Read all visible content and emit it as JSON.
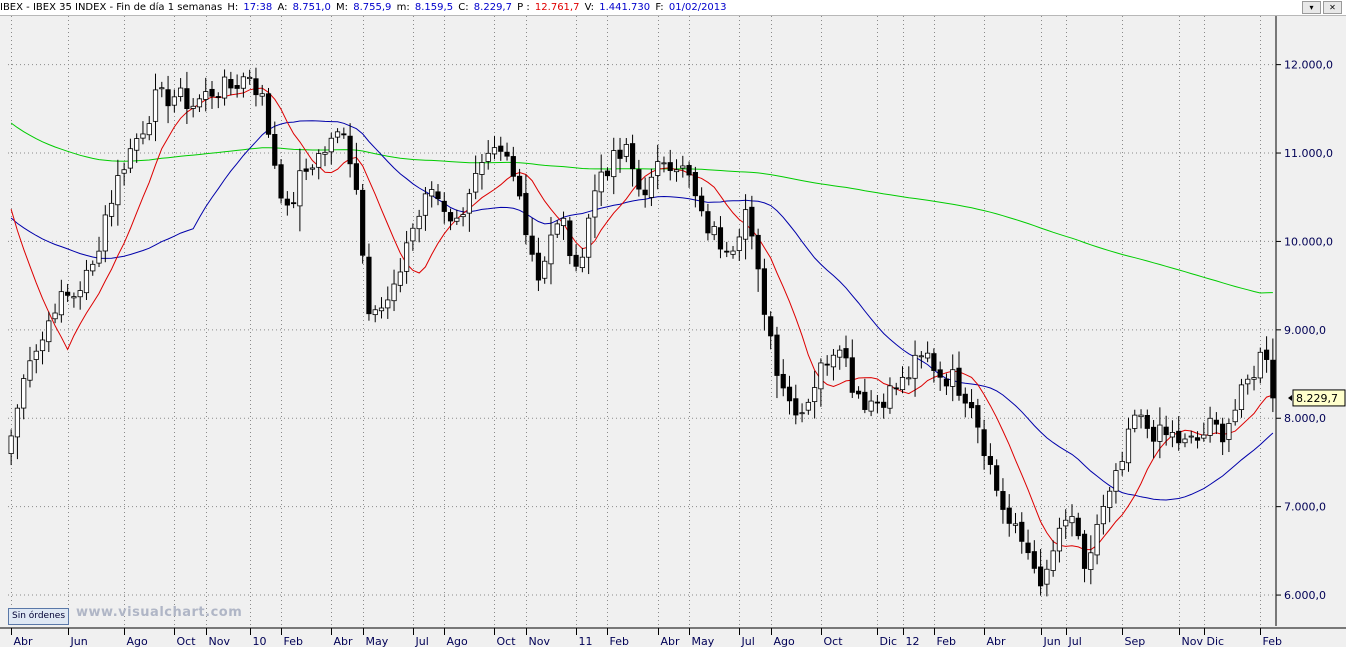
{
  "header": {
    "symbol": "IBEX - IBEX 35 INDEX - Fin de día 1 semanas",
    "fields": [
      {
        "label": "H:",
        "value": "17:38",
        "color": "#0000cc"
      },
      {
        "label": "A:",
        "value": "8.751,0",
        "color": "#0000cc"
      },
      {
        "label": "M:",
        "value": "8.755,9",
        "color": "#0000cc"
      },
      {
        "label": "m:",
        "value": "8.159,5",
        "color": "#0000cc"
      },
      {
        "label": "C:",
        "value": "8.229,7",
        "color": "#0000cc"
      },
      {
        "label": "P :",
        "value": "12.761,7",
        "color": "#e00000"
      },
      {
        "label": "V:",
        "value": "1.441.730",
        "color": "#0000cc"
      },
      {
        "label": "F:",
        "value": "01/02/2013",
        "color": "#0000cc"
      }
    ],
    "window_buttons": [
      "▾",
      "✕"
    ]
  },
  "status_button": "Sin órdenes",
  "watermark": "www.visualchart.com",
  "chart_data": {
    "type": "candlestick",
    "ylim": [
      5650,
      12550
    ],
    "yticks": [
      6000,
      7000,
      8000,
      9000,
      10000,
      11000,
      12000
    ],
    "ytick_labels": [
      "6.000,0",
      "7.000,0",
      "8.000,0",
      "9.000,0",
      "10.000,0",
      "11.000,0",
      "12.000,0"
    ],
    "last_price_label": "8.229,7",
    "last_price": 8229.7,
    "grid": true,
    "x_labels": [
      {
        "label": "Abr",
        "index": 0
      },
      {
        "label": "Jun",
        "index": 9
      },
      {
        "label": "Ago",
        "index": 18
      },
      {
        "label": "Oct",
        "index": 26
      },
      {
        "label": "Nov",
        "index": 31
      },
      {
        "label": "10",
        "index": 38
      },
      {
        "label": "Feb",
        "index": 43
      },
      {
        "label": "Abr",
        "index": 51
      },
      {
        "label": "May",
        "index": 56
      },
      {
        "label": "Jul",
        "index": 64
      },
      {
        "label": "Ago",
        "index": 69
      },
      {
        "label": "Oct",
        "index": 77
      },
      {
        "label": "Nov",
        "index": 82
      },
      {
        "label": "11",
        "index": 90
      },
      {
        "label": "Feb",
        "index": 95
      },
      {
        "label": "Abr",
        "index": 103
      },
      {
        "label": "May",
        "index": 108
      },
      {
        "label": "Jul",
        "index": 116
      },
      {
        "label": "Ago",
        "index": 121
      },
      {
        "label": "Oct",
        "index": 129
      },
      {
        "label": "Dic",
        "index": 138
      },
      {
        "label": "12",
        "index": 142
      },
      {
        "label": "Feb",
        "index": 147
      },
      {
        "label": "Abr",
        "index": 155
      },
      {
        "label": "Jun",
        "index": 164
      },
      {
        "label": "Jul",
        "index": 168
      },
      {
        "label": "Sep",
        "index": 177
      },
      {
        "label": "Nov",
        "index": 186
      },
      {
        "label": "Dic",
        "index": 190
      },
      {
        "label": "Feb",
        "index": 199
      }
    ],
    "close_anchors": [
      [
        0,
        7800
      ],
      [
        3,
        8750
      ],
      [
        5,
        8900
      ],
      [
        7,
        9300
      ],
      [
        10,
        9400
      ],
      [
        13,
        9700
      ],
      [
        15,
        10300
      ],
      [
        18,
        10900
      ],
      [
        21,
        11300
      ],
      [
        23,
        11600
      ],
      [
        26,
        11650
      ],
      [
        29,
        11550
      ],
      [
        32,
        11700
      ],
      [
        35,
        11750
      ],
      [
        38,
        11900
      ],
      [
        40,
        11600
      ],
      [
        42,
        10900
      ],
      [
        44,
        10300
      ],
      [
        46,
        10700
      ],
      [
        48,
        10900
      ],
      [
        51,
        11100
      ],
      [
        53,
        11300
      ],
      [
        55,
        10600
      ],
      [
        57,
        9300
      ],
      [
        59,
        9200
      ],
      [
        61,
        9400
      ],
      [
        63,
        10000
      ],
      [
        65,
        10300
      ],
      [
        67,
        10600
      ],
      [
        69,
        10400
      ],
      [
        71,
        10200
      ],
      [
        73,
        10600
      ],
      [
        75,
        10800
      ],
      [
        77,
        10950
      ],
      [
        79,
        10900
      ],
      [
        81,
        10500
      ],
      [
        84,
        9600
      ],
      [
        86,
        10100
      ],
      [
        88,
        10200
      ],
      [
        90,
        9600
      ],
      [
        92,
        10300
      ],
      [
        94,
        10800
      ],
      [
        96,
        10900
      ],
      [
        98,
        11000
      ],
      [
        100,
        10600
      ],
      [
        102,
        10650
      ],
      [
        104,
        10950
      ],
      [
        106,
        10900
      ],
      [
        108,
        10700
      ],
      [
        110,
        10250
      ],
      [
        113,
        10000
      ],
      [
        115,
        10000
      ],
      [
        117,
        10350
      ],
      [
        119,
        9600
      ],
      [
        122,
        8600
      ],
      [
        124,
        8200
      ],
      [
        126,
        8100
      ],
      [
        128,
        8400
      ],
      [
        130,
        8700
      ],
      [
        132,
        8900
      ],
      [
        134,
        8400
      ],
      [
        136,
        8200
      ],
      [
        138,
        8200
      ],
      [
        140,
        8300
      ],
      [
        142,
        8400
      ],
      [
        144,
        8600
      ],
      [
        146,
        8700
      ],
      [
        148,
        8500
      ],
      [
        150,
        8450
      ],
      [
        153,
        8200
      ],
      [
        155,
        7700
      ],
      [
        157,
        7200
      ],
      [
        159,
        6800
      ],
      [
        161,
        6600
      ],
      [
        163,
        6400
      ],
      [
        164,
        6000
      ],
      [
        166,
        6500
      ],
      [
        168,
        6800
      ],
      [
        169,
        6900
      ],
      [
        171,
        6200
      ],
      [
        173,
        6800
      ],
      [
        175,
        7100
      ],
      [
        177,
        7500
      ],
      [
        179,
        8000
      ],
      [
        181,
        7900
      ],
      [
        183,
        7800
      ],
      [
        185,
        7800
      ],
      [
        187,
        7700
      ],
      [
        189,
        7750
      ],
      [
        191,
        7900
      ],
      [
        193,
        7850
      ],
      [
        195,
        8100
      ],
      [
        197,
        8400
      ],
      [
        199,
        8700
      ],
      [
        200,
        8750
      ],
      [
        201,
        8229.7
      ]
    ],
    "series": [
      {
        "name": "",
        "kind": "moving-average",
        "period": 200,
        "color": "#00cc00"
      },
      {
        "name": "",
        "kind": "moving-average",
        "period": 30,
        "color": "#0000aa"
      },
      {
        "name": "",
        "kind": "moving-average",
        "period": 10,
        "color": "#dd0000"
      }
    ]
  }
}
